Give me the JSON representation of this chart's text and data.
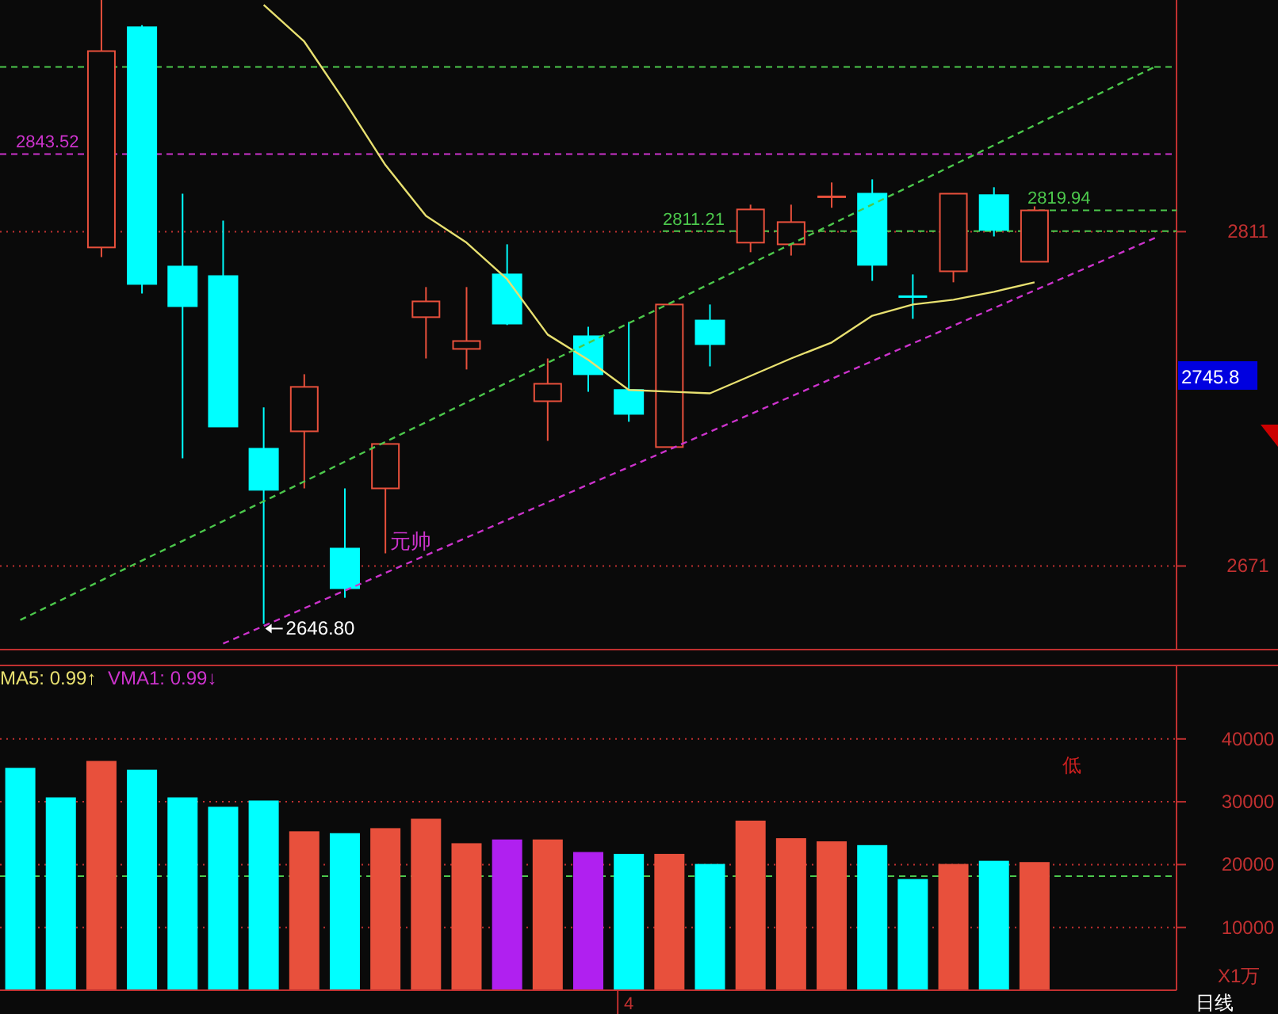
{
  "chart_data": [
    {
      "type": "candlestick",
      "categories": [
        null,
        null,
        null,
        null,
        null,
        null,
        null,
        null,
        null,
        null,
        null,
        null,
        null,
        null,
        null,
        null,
        null,
        null,
        null,
        null,
        null,
        null,
        null,
        null,
        null,
        null,
        null,
        null,
        null
      ],
      "ohlc": [
        null,
        null,
        [
          2804.4,
          2908,
          2800.4,
          2886.6
        ],
        [
          2896.6,
          2897.5,
          2785.1,
          2789.1
        ],
        [
          2796.4,
          2826.9,
          2716.1,
          2779.8
        ],
        [
          2792.4,
          2815.6,
          2729.4,
          2729.4
        ],
        [
          2720.1,
          2737.4,
          2646.8,
          2702.9
        ],
        [
          2727.4,
          2751.3,
          2703.5,
          2746.0
        ],
        [
          2678.3,
          2703.5,
          2657.7,
          2661.7
        ],
        [
          2703.5,
          2722.1,
          2676.3,
          2722.1
        ],
        [
          2775.2,
          2787.8,
          2757.9,
          2781.8
        ],
        [
          2761.9,
          2787.8,
          2753.3,
          2765.2
        ],
        [
          2793.1,
          2805.7,
          2771.9,
          2772.5
        ],
        [
          2740.0,
          2757.9,
          2723.4,
          2747.3
        ],
        [
          2767.2,
          2771.2,
          2744.0,
          2751.3
        ],
        [
          2744.7,
          2773.2,
          2731.4,
          2734.7
        ],
        [
          2720.8,
          2780.5,
          2720.8,
          2780.5
        ],
        [
          2773.8,
          2780.5,
          2754.6,
          2763.9
        ],
        [
          2806.4,
          2822.3,
          2802.4,
          2820.3
        ],
        [
          2805.7,
          2822.3,
          2801.0,
          2815.0
        ],
        [
          2825.6,
          2831.6,
          2821.0,
          2825.6
        ],
        [
          2826.9,
          2832.9,
          2790.4,
          2797.1
        ],
        [
          2783.8,
          2793.1,
          2774.5,
          2783.8
        ],
        [
          2794.4,
          2826.9,
          2789.8,
          2826.9
        ],
        [
          2826.3,
          2829.6,
          2809.0,
          2811.7
        ],
        [
          2798.4,
          2821.6,
          2798.4,
          2819.9
        ],
        null,
        null,
        null
      ],
      "colors": [
        null,
        null,
        "#e8503c",
        "#00ffff",
        "#00ffff",
        "#00ffff",
        "#00ffff",
        "#e8503c",
        "#00ffff",
        "#e8503c",
        "#e8503c",
        "#e8503c",
        "#00ffff",
        "#e8503c",
        "#00ffff",
        "#00ffff",
        "#e8503c",
        "#00ffff",
        "#e8503c",
        "#e8503c",
        "#e8503c",
        "#00ffff",
        "#00ffff",
        "#e8503c",
        "#00ffff",
        "#e8503c",
        null,
        null,
        null
      ],
      "series": [
        {
          "type": "line",
          "color": "#e8e070",
          "line_style": "solid",
          "values": [
            null,
            null,
            null,
            null,
            null,
            null,
            2906,
            2890.6,
            2865.4,
            2838.9,
            2817.6,
            2806.4,
            2791.1,
            2767.9,
            2757.3,
            2744.7,
            2744.0,
            2743.3,
            2750.6,
            2757.9,
            2764.6,
            2775.8,
            2780.5,
            2782.5,
            2785.8,
            2789.8,
            null,
            null,
            null
          ]
        },
        {
          "type": "line",
          "color": "#4cc84c",
          "line_style": "dashed",
          "values": [
            2648.4,
            2656.7,
            2665.0,
            2673.3,
            2681.5,
            2689.8,
            2698.1,
            2706.4,
            2714.7,
            2723.0,
            2731.2,
            2739.5,
            2747.8,
            2756.1,
            2764.4,
            2772.7,
            2780.9,
            2789.2,
            2797.5,
            2805.8,
            2814.1,
            2822.4,
            2830.6,
            2838.9,
            2847.2,
            2855.5,
            2863.8,
            2872.1,
            2880.3
          ]
        },
        {
          "type": "line",
          "color": "#cc33cc",
          "line_style": "dashed",
          "values": [
            null,
            null,
            null,
            null,
            null,
            2638.5,
            2645.9,
            2653.3,
            2660.7,
            2668.1,
            2675.5,
            2682.9,
            2690.3,
            2697.7,
            2705.1,
            2712.4,
            2719.8,
            2727.2,
            2734.6,
            2742.0,
            2749.4,
            2756.8,
            2764.2,
            2771.6,
            2779.0,
            2786.4,
            2793.8,
            2801.2,
            2808.6
          ]
        }
      ],
      "ylim": [
        2636,
        2908
      ],
      "yticks": [
        2811,
        2671
      ],
      "grid": "y",
      "tick_labels": "y",
      "ref_lines": [
        {
          "axis": "y",
          "value": 2880,
          "color": "#4cc84c",
          "line_style": "dashed"
        },
        {
          "axis": "y",
          "value": 2843.52,
          "label": "2843.52",
          "color": "#cc33cc",
          "line_style": "dashed"
        },
        {
          "axis": "y",
          "value": 2811.21,
          "label": "2811.21",
          "color": "#4cc84c",
          "line_style": "dashed"
        },
        {
          "axis": "y",
          "value": 2819.94,
          "label": "2819.94",
          "color": "#4cc84c",
          "line_style": "dashed"
        }
      ],
      "annotations": [
        "2646.80",
        "元帅",
        "2745.8"
      ]
    },
    {
      "type": "bar",
      "categories": [
        null,
        null,
        null,
        null,
        null,
        null,
        null,
        null,
        null,
        null,
        null,
        null,
        null,
        null,
        null,
        "4",
        null,
        null,
        null,
        null,
        null,
        null,
        null,
        null,
        null,
        null,
        null,
        null,
        null
      ],
      "values": [
        35400,
        30700,
        36500,
        35100,
        30700,
        29200,
        30200,
        25300,
        25000,
        25800,
        27300,
        23400,
        24000,
        24000,
        22000,
        21700,
        21700,
        20100,
        27000,
        24200,
        23700,
        23100,
        17700,
        20100,
        20600,
        20400,
        null,
        null,
        null
      ],
      "colors": [
        "#00ffff",
        "#00ffff",
        "#e8503c",
        "#00ffff",
        "#00ffff",
        "#00ffff",
        "#00ffff",
        "#e8503c",
        "#00ffff",
        "#e8503c",
        "#e8503c",
        "#e8503c",
        "#b020f0",
        "#e8503c",
        "#b020f0",
        "#00ffff",
        "#e8503c",
        "#00ffff",
        "#e8503c",
        "#e8503c",
        "#e8503c",
        "#00ffff",
        "#00ffff",
        "#e8503c",
        "#00ffff",
        "#e8503c",
        null,
        null,
        null
      ],
      "ylim": [
        0,
        51700
      ],
      "yticks": [
        10000,
        20000,
        30000,
        40000
      ],
      "grid": "y",
      "ref_lines": [
        {
          "axis": "y",
          "value": 18150,
          "color": "#4cc84c",
          "line_style": "dashed"
        }
      ],
      "annotations": [
        "MA5: 0.99↑",
        "VMA1: 0.99↓",
        "低",
        "X1万",
        "日线"
      ]
    }
  ]
}
